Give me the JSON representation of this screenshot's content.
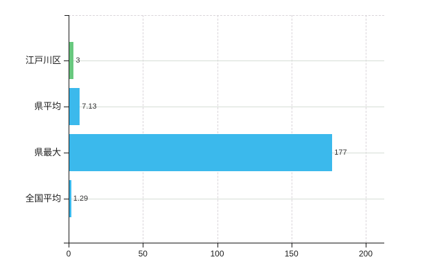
{
  "chart_data": {
    "type": "bar",
    "orientation": "horizontal",
    "title": "",
    "xlabel": "",
    "ylabel": "",
    "categories": [
      "江戸川区",
      "県平均",
      "県最大",
      "全国平均"
    ],
    "values": [
      3,
      7.13,
      177,
      1.29
    ],
    "value_labels": [
      "3",
      "7.13",
      "177",
      "1.29"
    ],
    "bar_colors": [
      "#68c87e",
      "#3bb9ec",
      "#3bb9ec",
      "#3bb9ec"
    ],
    "xticks": [
      0,
      50,
      100,
      150,
      200
    ],
    "xtick_labels": [
      "0",
      "50",
      "100",
      "150",
      "200"
    ],
    "xlim": [
      0,
      212
    ],
    "grid": true,
    "gridline_horizontal_style": "solid",
    "gridline_vertical_style": "dashed",
    "legend_position": "none",
    "colors": {
      "bar_blue": "#3bb9ec",
      "bar_green": "#68c87e",
      "grid": "#d6ddd6",
      "axis": "#161616",
      "background": "#ffffff",
      "text": "#1a1a1a"
    }
  }
}
